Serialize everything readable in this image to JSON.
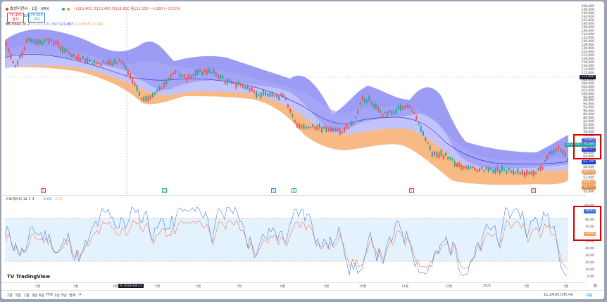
{
  "header": {
    "title": "효성티앤씨 · 1일 · KRX",
    "ohlc": "시113,400 고113,400 저111,600 종111,100 −4,180 (−3.53%)",
    "sell_price": "75,400",
    "sell_label": "팔자",
    "buy_price": "75,500",
    "buy_label": "사자",
    "bb_label": "BB close 20 2",
    "bb_values": [
      "116,206",
      "121,363",
      "121,867",
      "116,897",
      "113,440"
    ]
  },
  "price_axis": {
    "labels": [
      "150,000",
      "148,000",
      "146,000",
      "144,000",
      "142,000",
      "140,000",
      "138,000",
      "136,000",
      "134,000",
      "132,000",
      "130,000",
      "128,000",
      "126,000",
      "124,000",
      "122,000",
      "120,000",
      "118,000",
      "116,000",
      "114,000",
      "112,000",
      "110,000",
      "108,000",
      "106,000",
      "104,000",
      "102,000",
      "100,000",
      "98,000",
      "96,000",
      "94,000",
      "92,000",
      "90,000",
      "88,000",
      "86,000",
      "84,000",
      "82,000",
      "80,000",
      "78,000",
      "76,000",
      "74,000",
      "72,000",
      "70,000",
      "68,000",
      "66,000",
      "64,000",
      "62,000",
      "60,000",
      "58,000",
      "56,000",
      "54,000",
      "52,000",
      "50,000",
      "48,000",
      "46,000",
      "44,000"
    ],
    "tag_current": "111,600",
    "tag_upper": "71,465",
    "tag_price": "70,300",
    "tag_price_time": "13:28:35",
    "tag_mid": "66,117",
    "tag_lower": "62,700",
    "tag_low1": "56,750",
    "tag_low2": "51,817",
    "tag_low3": "48,377"
  },
  "stoch": {
    "label": "스토캐스틱 14 1 3",
    "k": "6.09",
    "d": "4.92",
    "axis": [
      "100.00",
      "90.00",
      "80.00",
      "70.00",
      "60.00",
      "50.00",
      "40.00",
      "30.00",
      "20.00",
      "10.00",
      "0.00"
    ],
    "tag_k": "78.63",
    "tag_d": "53.48"
  },
  "time_axis": {
    "months": [
      "2월",
      "3월",
      "4월",
      "5월",
      "6월",
      "7월",
      "8월",
      "9월",
      "10월",
      "11월",
      "12월",
      "2025",
      "2월",
      "3월"
    ],
    "cursor_date": "목 2024-04-11"
  },
  "footer": {
    "timeframes": [
      "1일",
      "5일",
      "1달",
      "3달",
      "6달",
      "YTD",
      "1년",
      "5년",
      "전체"
    ],
    "clock": "11:24:55 UTC+9",
    "mode": "자동"
  },
  "brand": "TradingView",
  "colors": {
    "up": "#26a69a",
    "down": "#ef5350",
    "upper_band": "#7b7bf0",
    "lower_band": "#f6a25c"
  }
}
